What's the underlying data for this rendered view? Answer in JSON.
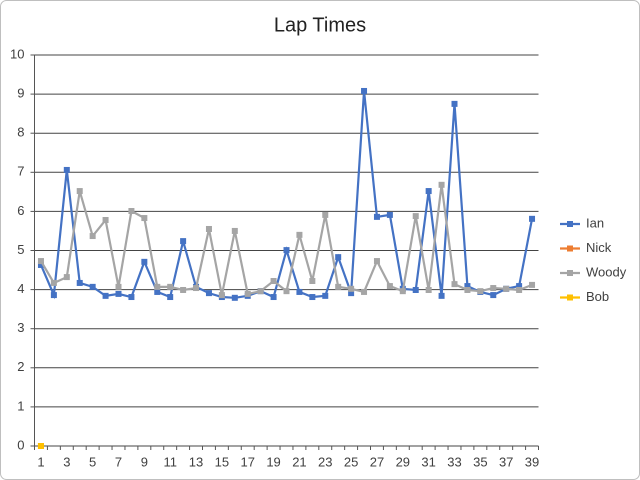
{
  "chart_data": {
    "type": "line",
    "title": "Lap Times",
    "categories": [
      1,
      null,
      3,
      null,
      5,
      null,
      7,
      null,
      9,
      null,
      11,
      null,
      13,
      null,
      15,
      null,
      17,
      null,
      19,
      null,
      21,
      null,
      23,
      null,
      25,
      null,
      27,
      null,
      29,
      null,
      31,
      null,
      33,
      null,
      35,
      null,
      37,
      null,
      39
    ],
    "series": [
      {
        "name": "Ian",
        "color": "#4472c4",
        "values": [
          4.63,
          3.86,
          7.06,
          4.17,
          4.07,
          3.84,
          3.89,
          3.81,
          4.71,
          3.94,
          3.81,
          5.24,
          4.07,
          3.91,
          3.81,
          3.79,
          3.84,
          3.96,
          3.81,
          5.01,
          3.94,
          3.81,
          3.84,
          4.83,
          3.91,
          9.08,
          5.86,
          5.91,
          4.02,
          3.99,
          6.52,
          3.84,
          8.75,
          4.09,
          3.94,
          3.86,
          4.02,
          4.09,
          5.81
        ]
      },
      {
        "name": "Nick",
        "color": "#ed7d31",
        "values": [
          0,
          null,
          null,
          null,
          null,
          null,
          null,
          null,
          null,
          null,
          null,
          null,
          null,
          null,
          null,
          null,
          null,
          null,
          null,
          null,
          null,
          null,
          null,
          null,
          null,
          null,
          null,
          null,
          null,
          null,
          null,
          null,
          null,
          null,
          null,
          null,
          null,
          null,
          null
        ]
      },
      {
        "name": "Woody",
        "color": "#a5a5a5",
        "values": [
          4.73,
          4.17,
          4.32,
          6.52,
          5.37,
          5.78,
          4.07,
          6.01,
          5.83,
          4.07,
          4.07,
          3.99,
          4.04,
          5.55,
          3.86,
          5.5,
          3.89,
          3.96,
          4.22,
          3.96,
          5.4,
          4.22,
          5.91,
          4.07,
          4.02,
          3.94,
          4.73,
          4.09,
          3.96,
          5.88,
          3.99,
          6.68,
          4.14,
          3.99,
          3.96,
          4.04,
          4.02,
          3.99,
          4.12
        ]
      },
      {
        "name": "Bob",
        "color": "#ffc000",
        "values": [
          0,
          null,
          null,
          null,
          null,
          null,
          null,
          null,
          null,
          null,
          null,
          null,
          null,
          null,
          null,
          null,
          null,
          null,
          null,
          null,
          null,
          null,
          null,
          null,
          null,
          null,
          null,
          null,
          null,
          null,
          null,
          null,
          null,
          null,
          null,
          null,
          null,
          null,
          null
        ]
      }
    ],
    "ylim": [
      0,
      10
    ],
    "yticks": [
      0,
      1,
      2,
      3,
      4,
      5,
      6,
      7,
      8,
      9,
      10
    ],
    "grid": true,
    "legend": "right"
  }
}
